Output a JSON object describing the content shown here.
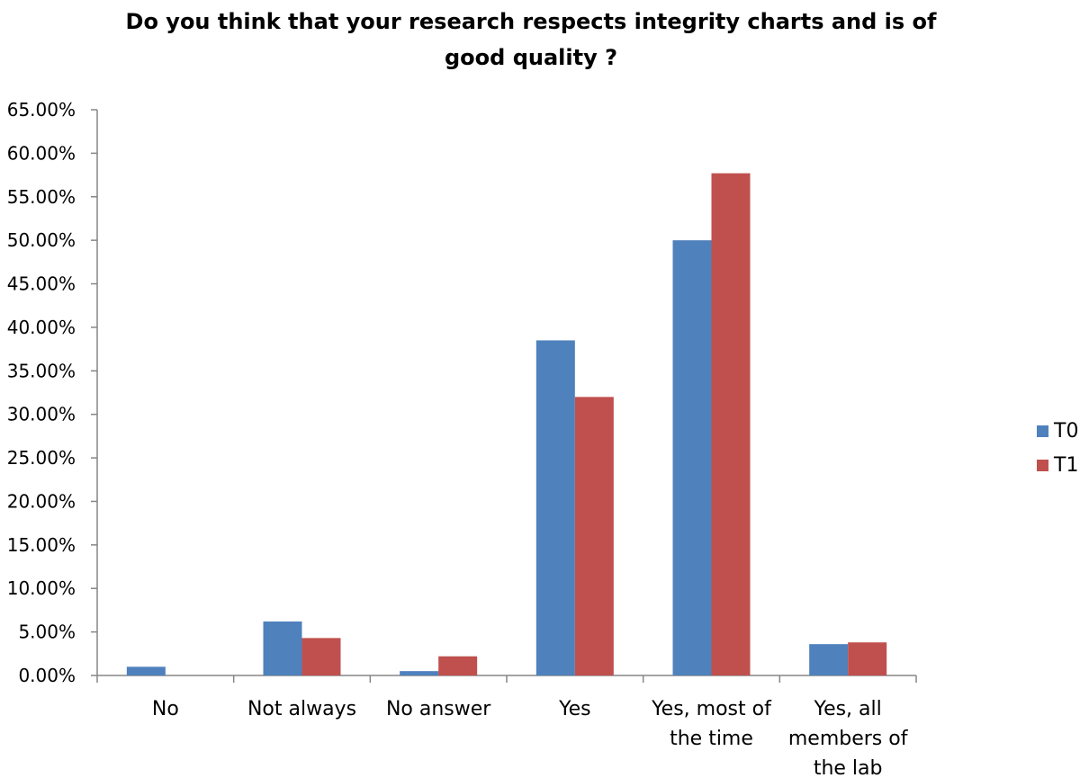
{
  "chart_data": {
    "type": "bar",
    "title_lines": [
      "Do you think that your research respects integrity charts and  is of",
      "good quality ?"
    ],
    "xlabel": "",
    "ylabel": "",
    "categories": [
      "No",
      "Not always",
      "No answer",
      "Yes",
      "Yes, most of the time",
      "Yes, all members of the lab"
    ],
    "category_label_lines": [
      [
        "No"
      ],
      [
        "Not always"
      ],
      [
        "No answer"
      ],
      [
        "Yes"
      ],
      [
        "Yes, most of",
        "the time"
      ],
      [
        "Yes, all",
        "members of",
        "the lab"
      ]
    ],
    "series": [
      {
        "name": "T0",
        "color": "#4F81BD",
        "values": [
          1.0,
          6.2,
          0.5,
          38.5,
          50.0,
          3.6
        ]
      },
      {
        "name": "T1",
        "color": "#C0504D",
        "values": [
          0.0,
          4.3,
          2.2,
          32.0,
          57.7,
          3.8
        ]
      }
    ],
    "ylim": [
      0,
      65
    ],
    "ytick_step": 5,
    "ytick_labels": [
      "0.00%",
      "5.00%",
      "10.00%",
      "15.00%",
      "20.00%",
      "25.00%",
      "30.00%",
      "35.00%",
      "40.00%",
      "45.00%",
      "50.00%",
      "55.00%",
      "60.00%",
      "65.00%"
    ],
    "grid": false,
    "legend_position": "right"
  }
}
